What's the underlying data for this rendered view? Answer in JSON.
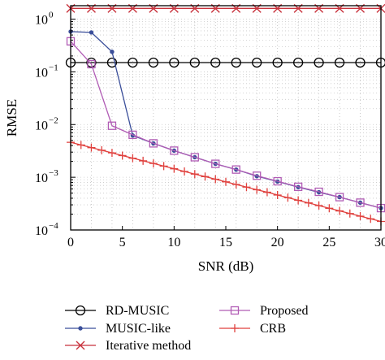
{
  "chart_data": {
    "type": "line",
    "title": "",
    "xlabel": "SNR (dB)",
    "ylabel": "RMSE",
    "xlim": [
      0,
      30
    ],
    "ylim": [
      0.0001,
      1.8
    ],
    "yscale": "log",
    "grid": "dotted",
    "x_ticks": [
      0,
      5,
      10,
      15,
      20,
      25,
      30
    ],
    "x_tick_labels": [
      "0",
      "5",
      "10",
      "15",
      "20",
      "25",
      "30"
    ],
    "y_ticks": [
      {
        "value": 1,
        "mantissa": "10",
        "exponent": "0"
      },
      {
        "value": 0.1,
        "mantissa": "10",
        "exponent": "−1"
      },
      {
        "value": 0.01,
        "mantissa": "10",
        "exponent": "−2"
      },
      {
        "value": 0.001,
        "mantissa": "10",
        "exponent": "−3"
      },
      {
        "value": 0.0001,
        "mantissa": "10",
        "exponent": "−4"
      }
    ],
    "legend_placement": "bottom",
    "series": [
      {
        "name": "RD-MUSIC",
        "color": "#000000",
        "marker": "circle",
        "x": [
          0,
          2,
          4,
          6,
          8,
          10,
          12,
          14,
          16,
          18,
          20,
          22,
          24,
          26,
          28,
          30
        ],
        "values": [
          0.15,
          0.15,
          0.15,
          0.15,
          0.15,
          0.15,
          0.15,
          0.15,
          0.15,
          0.15,
          0.15,
          0.15,
          0.15,
          0.15,
          0.15,
          0.15
        ]
      },
      {
        "name": "MUSIC-like",
        "color": "#3b4f9a",
        "marker": "dot",
        "x": [
          0,
          2,
          4,
          6,
          8,
          10,
          12,
          14,
          16,
          18,
          20,
          22,
          24,
          26,
          28,
          30
        ],
        "values": [
          0.58,
          0.56,
          0.24,
          0.0062,
          0.0044,
          0.0032,
          0.0024,
          0.0018,
          0.0014,
          0.00105,
          0.00083,
          0.00065,
          0.00052,
          0.00042,
          0.00033,
          0.00026
        ]
      },
      {
        "name": "Iterative method",
        "color": "#c8323c",
        "marker": "x",
        "x": [
          0,
          2,
          4,
          6,
          8,
          10,
          12,
          14,
          16,
          18,
          20,
          22,
          24,
          26,
          28,
          30
        ],
        "values": [
          1.6,
          1.6,
          1.6,
          1.6,
          1.6,
          1.6,
          1.6,
          1.6,
          1.6,
          1.6,
          1.6,
          1.6,
          1.6,
          1.6,
          1.6,
          1.6
        ]
      },
      {
        "name": "Proposed",
        "color": "#b15cb5",
        "marker": "square",
        "x": [
          0,
          2,
          4,
          6,
          8,
          10,
          12,
          14,
          16,
          18,
          20,
          22,
          24,
          26,
          28,
          30
        ],
        "values": [
          0.38,
          0.14,
          0.0095,
          0.0064,
          0.0044,
          0.0032,
          0.0024,
          0.0018,
          0.0014,
          0.00107,
          0.00084,
          0.00066,
          0.00053,
          0.00042,
          0.00033,
          0.00026
        ]
      },
      {
        "name": "CRB",
        "color": "#e0413e",
        "marker": "plus",
        "x": [
          0,
          1,
          2,
          3,
          4,
          5,
          6,
          7,
          8,
          9,
          10,
          11,
          12,
          13,
          14,
          15,
          16,
          17,
          18,
          19,
          20,
          21,
          22,
          23,
          24,
          25,
          26,
          27,
          28,
          29,
          30
        ],
        "values": [
          0.0046,
          0.0041,
          0.00365,
          0.00326,
          0.0029,
          0.00258,
          0.0023,
          0.00205,
          0.00183,
          0.00163,
          0.00145,
          0.00129,
          0.00115,
          0.00103,
          0.00092,
          0.00082,
          0.00073,
          0.00065,
          0.00058,
          0.00052,
          0.00046,
          0.00041,
          0.000365,
          0.000326,
          0.00029,
          0.000258,
          0.00023,
          0.000205,
          0.000183,
          0.000163,
          0.000145
        ]
      }
    ]
  }
}
